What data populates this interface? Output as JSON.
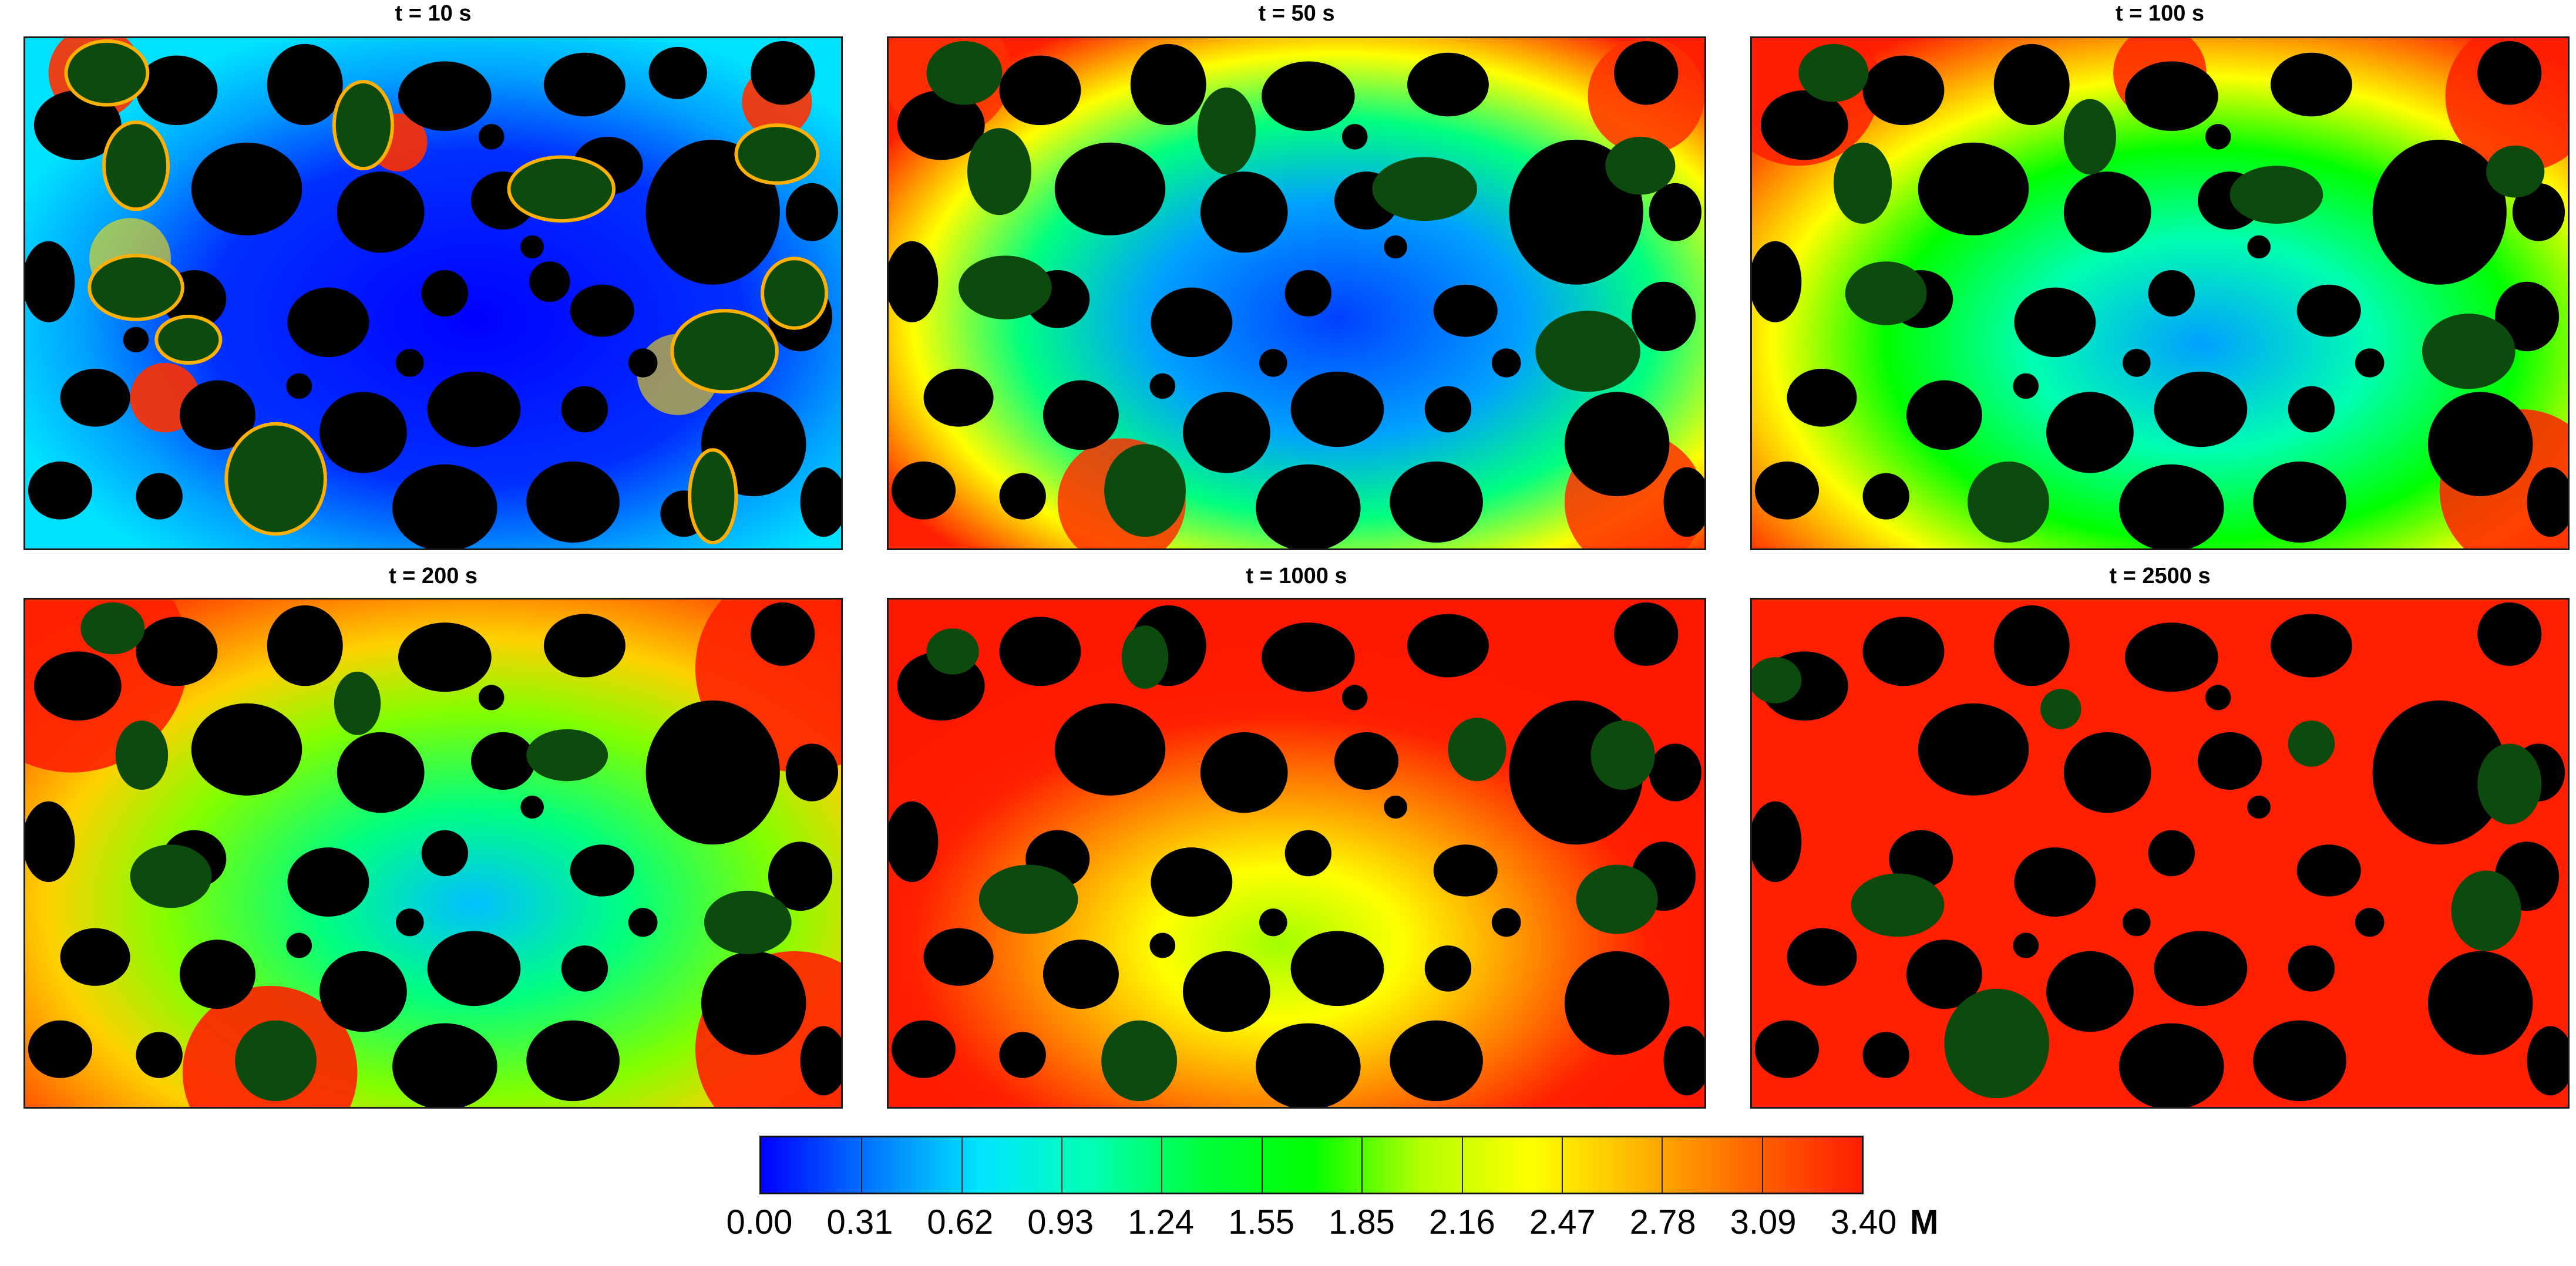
{
  "panels": [
    {
      "title": "t = 10 s"
    },
    {
      "title": "t = 50 s"
    },
    {
      "title": "t = 100 s"
    },
    {
      "title": "t = 200 s"
    },
    {
      "title": "t = 1000 s"
    },
    {
      "title": "t = 2500 s"
    }
  ],
  "colorbar": {
    "ticks": [
      "0.00",
      "0.31",
      "0.62",
      "0.93",
      "1.24",
      "1.55",
      "1.85",
      "2.16",
      "2.47",
      "2.78",
      "3.09",
      "3.40"
    ],
    "unit": "M",
    "colors": [
      "#0000ff",
      "#0078ff",
      "#00e6ff",
      "#00ffb4",
      "#00ff3c",
      "#00ff00",
      "#b4ff00",
      "#ffff00",
      "#ffb400",
      "#ff6400",
      "#ff1e00"
    ]
  },
  "legend_colors": {
    "solid_particles": "#000000",
    "secondary_phase": "#0d4a0d"
  }
}
